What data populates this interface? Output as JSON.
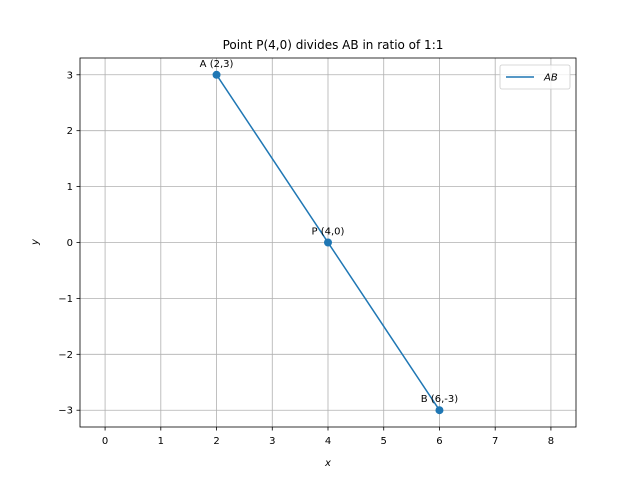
{
  "chart_data": {
    "type": "scatter",
    "title": "Point P(4,0) divides AB in ratio of 1:1",
    "xlabel": "x",
    "ylabel": "y",
    "xlim": [
      -0.45,
      8.45
    ],
    "ylim": [
      -3.3,
      3.3
    ],
    "xticks": [
      0,
      1,
      2,
      3,
      4,
      5,
      6,
      7,
      8
    ],
    "yticks": [
      -3,
      -2,
      -1,
      0,
      1,
      2,
      3
    ],
    "xtick_labels": [
      "0",
      "1",
      "2",
      "3",
      "4",
      "5",
      "6",
      "7",
      "8"
    ],
    "ytick_labels": [
      "−3",
      "−2",
      "−1",
      "0",
      "1",
      "2",
      "3"
    ],
    "grid": true,
    "legend_position": "top-right",
    "series": [
      {
        "name": "AB",
        "kind": "line",
        "color": "#1f77b4",
        "points": [
          {
            "x": 2,
            "y": 3
          },
          {
            "x": 6,
            "y": -3
          }
        ]
      }
    ],
    "points": [
      {
        "x": 2,
        "y": 3,
        "label": "A (2,3)"
      },
      {
        "x": 4,
        "y": 0,
        "label": "P (4,0)"
      },
      {
        "x": 6,
        "y": -3,
        "label": "B (6,-3)"
      }
    ],
    "point_color": "#1f77b4"
  }
}
